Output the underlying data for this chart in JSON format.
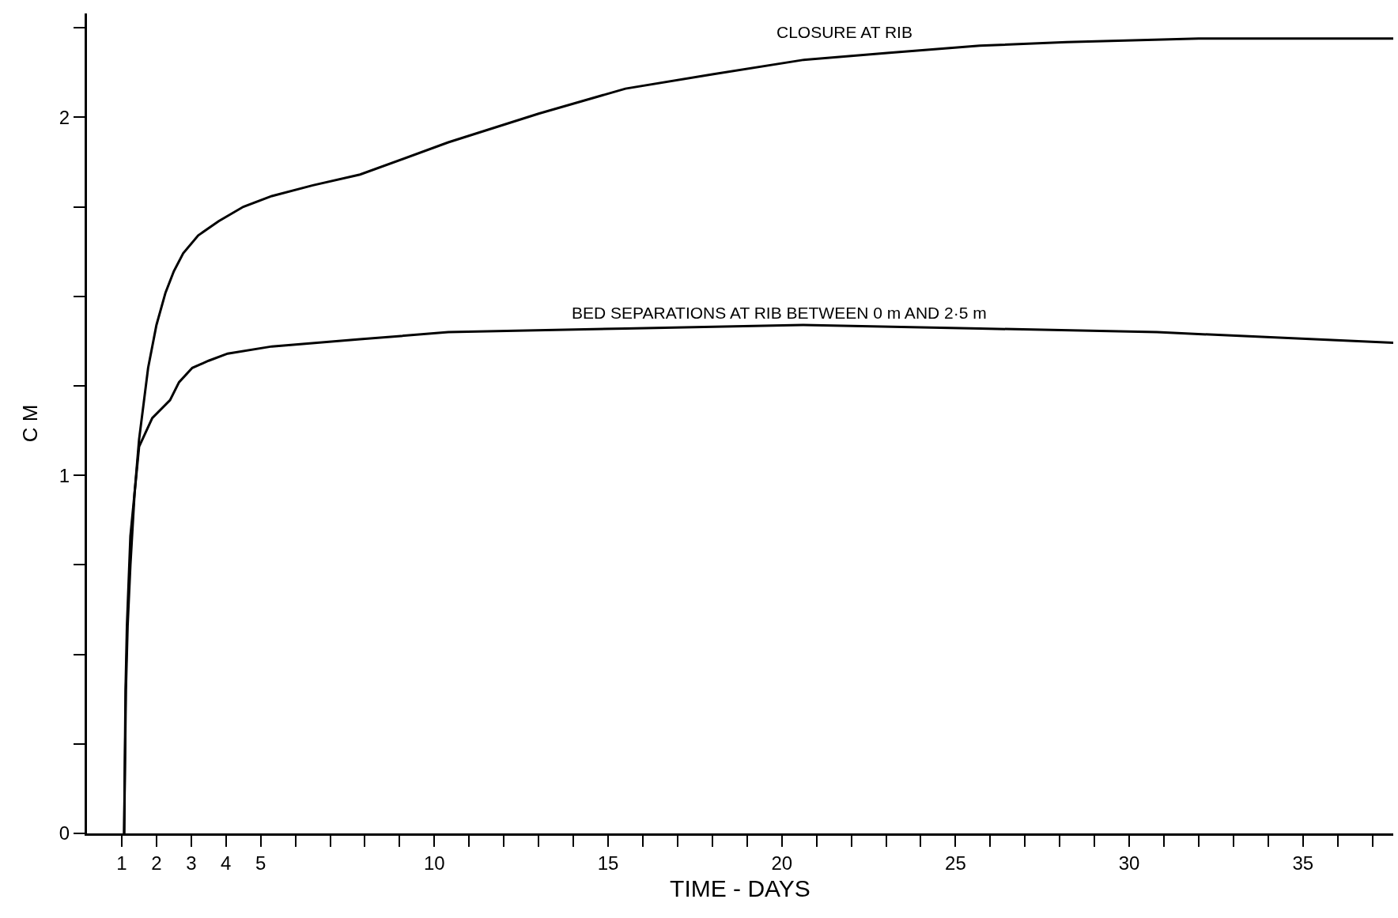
{
  "chart_data": {
    "type": "line",
    "xlabel": "TIME - DAYS",
    "ylabel": "C M",
    "series": [
      {
        "color": "#000000",
        "x": [
          1.07,
          1.12,
          1.17,
          1.25,
          1.37,
          1.5,
          1.76,
          2.0,
          2.26,
          2.5,
          2.77,
          3.2,
          3.79,
          4.5,
          5.32,
          6.5,
          7.86,
          10.4,
          13.0,
          15.5,
          18.0,
          20.6,
          23.1,
          25.7,
          28.2,
          32.0,
          37.6
        ],
        "values": [
          0,
          0.4,
          0.58,
          0.75,
          0.95,
          1.1,
          1.3,
          1.42,
          1.51,
          1.57,
          1.62,
          1.67,
          1.71,
          1.75,
          1.78,
          1.81,
          1.84,
          1.93,
          2.01,
          2.08,
          2.12,
          2.16,
          2.18,
          2.2,
          2.21,
          2.22,
          2.22
        ]
      },
      {
        "color": "#000000",
        "x": [
          1.07,
          1.11,
          1.15,
          1.25,
          1.5,
          1.88,
          2.39,
          2.65,
          3.03,
          3.5,
          4.05,
          5.32,
          7.86,
          10.4,
          15.5,
          20.6,
          25.7,
          30.8,
          37.6
        ],
        "values": [
          0,
          0.4,
          0.58,
          0.83,
          1.08,
          1.16,
          1.21,
          1.26,
          1.3,
          1.32,
          1.34,
          1.36,
          1.38,
          1.4,
          1.41,
          1.42,
          1.41,
          1.4,
          1.37
        ]
      }
    ],
    "annotations": [
      "CLOSURE AT RIB",
      "BED SEPARATIONS AT RIB BETWEEN 0 m AND 2·5 m"
    ],
    "xlim": [
      0,
      37.6
    ],
    "xticks": [
      1,
      2,
      3,
      4,
      5,
      {
        "value": 6,
        "label": null
      },
      {
        "value": 7,
        "label": null
      },
      {
        "value": 8,
        "label": null
      },
      {
        "value": 9,
        "label": null
      },
      10,
      {
        "value": 11,
        "label": null
      },
      {
        "value": 12,
        "label": null
      },
      {
        "value": 13,
        "label": null
      },
      {
        "value": 14,
        "label": null
      },
      15,
      {
        "value": 16,
        "label": null
      },
      {
        "value": 17,
        "label": null
      },
      {
        "value": 18,
        "label": null
      },
      {
        "value": 19,
        "label": null
      },
      20,
      {
        "value": 21,
        "label": null
      },
      {
        "value": 22,
        "label": null
      },
      {
        "value": 23,
        "label": null
      },
      {
        "value": 24,
        "label": null
      },
      25,
      {
        "value": 26,
        "label": null
      },
      {
        "value": 27,
        "label": null
      },
      {
        "value": 28,
        "label": null
      },
      {
        "value": 29,
        "label": null
      },
      30,
      {
        "value": 31,
        "label": null
      },
      {
        "value": 32,
        "label": null
      },
      {
        "value": 33,
        "label": null
      },
      {
        "value": 34,
        "label": null
      },
      35,
      {
        "value": 36,
        "label": null
      },
      {
        "value": 37,
        "label": null
      }
    ],
    "ylim": [
      0,
      2.29
    ],
    "yticks": [
      0,
      {
        "value": 0.25,
        "label": null
      },
      {
        "value": 0.5,
        "label": null
      },
      {
        "value": 0.75,
        "label": null
      },
      1,
      {
        "value": 1.25,
        "label": null
      },
      {
        "value": 1.5,
        "label": null
      },
      {
        "value": 1.75,
        "label": null
      },
      2,
      {
        "value": 2.25,
        "label": null
      }
    ],
    "grid": false,
    "marker": "none",
    "line_style": "solid"
  }
}
